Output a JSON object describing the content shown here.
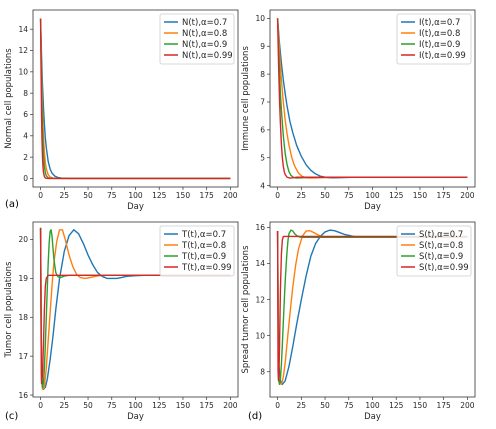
{
  "colors": [
    "#1f77b4",
    "#ff7f0e",
    "#2ca02c",
    "#d62728"
  ],
  "chart_data": [
    {
      "type": "line",
      "panel_label": "(a)",
      "xlabel": "Day",
      "ylabel": "Normal cell  populations",
      "xlim": [
        -8,
        208
      ],
      "ylim": [
        -0.8,
        15.8
      ],
      "xticks": [
        0,
        25,
        50,
        75,
        100,
        125,
        150,
        175,
        200
      ],
      "yticks": [
        0,
        2,
        4,
        6,
        8,
        10,
        12,
        14
      ],
      "legend_position": "top-right",
      "series": [
        {
          "name": "N(t),α=0.7",
          "x": [
            0,
            1,
            2,
            3,
            4,
            5,
            6,
            8,
            10,
            12,
            15,
            18,
            22,
            30,
            40,
            60,
            100,
            200
          ],
          "y": [
            15,
            11.5,
            8.8,
            6.7,
            5.1,
            3.8,
            2.9,
            1.6,
            0.9,
            0.5,
            0.22,
            0.1,
            0.04,
            0,
            0,
            0,
            0,
            0
          ]
        },
        {
          "name": "N(t),α=0.8",
          "x": [
            0,
            1,
            2,
            3,
            4,
            5,
            6,
            8,
            10,
            13,
            16,
            20,
            30,
            60,
            200
          ],
          "y": [
            15,
            10,
            6.4,
            4,
            2.5,
            1.5,
            0.9,
            0.35,
            0.13,
            0.04,
            0.01,
            0,
            0,
            0,
            0
          ]
        },
        {
          "name": "N(t),α=0.9",
          "x": [
            0,
            1,
            2,
            3,
            4,
            5,
            6,
            8,
            10,
            15,
            30,
            200
          ],
          "y": [
            15,
            8.5,
            4.5,
            2.3,
            1.1,
            0.55,
            0.25,
            0.06,
            0.01,
            0,
            0,
            0
          ]
        },
        {
          "name": "N(t),α=0.99",
          "x": [
            0,
            0.5,
            1,
            1.5,
            2,
            2.5,
            3,
            4,
            5,
            6,
            8,
            20,
            200
          ],
          "y": [
            15,
            10,
            6,
            3.5,
            2,
            1.1,
            0.6,
            0.18,
            0.05,
            0.01,
            0,
            0,
            0
          ]
        }
      ]
    },
    {
      "type": "line",
      "panel_label": "",
      "xlabel": "Day",
      "ylabel": "Immune cell  populations",
      "xlim": [
        -8,
        208
      ],
      "ylim": [
        3.95,
        10.3
      ],
      "xticks": [
        0,
        25,
        50,
        75,
        100,
        125,
        150,
        175,
        200
      ],
      "yticks": [
        4,
        5,
        6,
        7,
        8,
        9,
        10
      ],
      "legend_position": "top-right",
      "series": [
        {
          "name": "I(t),α=0.7",
          "x": [
            0,
            2,
            4,
            6,
            8,
            10,
            13,
            16,
            20,
            25,
            30,
            35,
            40,
            45,
            50,
            55,
            60,
            80,
            100,
            200
          ],
          "y": [
            10,
            9.1,
            8.4,
            7.8,
            7.3,
            6.85,
            6.3,
            5.9,
            5.45,
            5.05,
            4.75,
            4.55,
            4.42,
            4.34,
            4.3,
            4.28,
            4.28,
            4.3,
            4.3,
            4.3
          ]
        },
        {
          "name": "I(t),α=0.8",
          "x": [
            0,
            2,
            4,
            6,
            8,
            10,
            12,
            15,
            18,
            22,
            26,
            30,
            35,
            45,
            60,
            100,
            200
          ],
          "y": [
            10,
            8.8,
            7.8,
            7,
            6.35,
            5.85,
            5.45,
            5,
            4.7,
            4.45,
            4.33,
            4.28,
            4.27,
            4.28,
            4.3,
            4.3,
            4.3
          ]
        },
        {
          "name": "I(t),α=0.9",
          "x": [
            0,
            1,
            2,
            3,
            4,
            6,
            8,
            10,
            12,
            14,
            17,
            20,
            25,
            35,
            60,
            200
          ],
          "y": [
            10,
            9,
            8.1,
            7.3,
            6.7,
            5.8,
            5.15,
            4.75,
            4.5,
            4.37,
            4.29,
            4.27,
            4.28,
            4.3,
            4.3,
            4.3
          ]
        },
        {
          "name": "I(t),α=0.99",
          "x": [
            0,
            1,
            2,
            3,
            4,
            5,
            6,
            7,
            8,
            10,
            13,
            16,
            20,
            200
          ],
          "y": [
            10,
            8.4,
            7.1,
            6.2,
            5.5,
            5,
            4.7,
            4.5,
            4.4,
            4.3,
            4.27,
            4.28,
            4.3,
            4.3
          ]
        }
      ]
    },
    {
      "type": "line",
      "panel_label": "(c)",
      "xlabel": "Day",
      "ylabel": "Tumor cell  populations",
      "xlim": [
        -8,
        208
      ],
      "ylim": [
        15.95,
        20.45
      ],
      "xticks": [
        0,
        25,
        50,
        75,
        100,
        125,
        150,
        175,
        200
      ],
      "yticks": [
        16,
        17,
        18,
        19,
        20
      ],
      "legend_position": "top-right",
      "series": [
        {
          "name": "T(t),α=0.7",
          "x": [
            0,
            1,
            3,
            5,
            7,
            10,
            13,
            16,
            20,
            25,
            30,
            35,
            40,
            45,
            50,
            55,
            60,
            65,
            70,
            75,
            80,
            85,
            90,
            100,
            110,
            120,
            200
          ],
          "y": [
            20.3,
            16.5,
            16.15,
            16.2,
            16.4,
            16.9,
            17.5,
            18.2,
            19,
            19.7,
            20.1,
            20.25,
            20.15,
            19.9,
            19.6,
            19.35,
            19.15,
            19.05,
            19,
            19,
            19,
            19.02,
            19.05,
            19.07,
            19.08,
            19.08,
            19.08
          ]
        },
        {
          "name": "T(t),α=0.8",
          "x": [
            0,
            1,
            2,
            4,
            6,
            8,
            10,
            12,
            14,
            17,
            20,
            23,
            26,
            30,
            34,
            38,
            42,
            47,
            52,
            57,
            62,
            70,
            80,
            100,
            200
          ],
          "y": [
            20.3,
            16.4,
            16.15,
            16.2,
            16.7,
            17.4,
            18.1,
            18.8,
            19.4,
            19.95,
            20.25,
            20.25,
            20,
            19.6,
            19.3,
            19.1,
            19.02,
            19,
            19.02,
            19.05,
            19.07,
            19.08,
            19.08,
            19.08,
            19.08
          ]
        },
        {
          "name": "T(t),α=0.9",
          "x": [
            0,
            1,
            2,
            3,
            4,
            5,
            6,
            7,
            8,
            9,
            10,
            11,
            12,
            13,
            14,
            16,
            18,
            20,
            22,
            25,
            30,
            40,
            200
          ],
          "y": [
            20.3,
            16.4,
            16.2,
            16.3,
            16.7,
            17.3,
            18,
            18.7,
            19.4,
            19.9,
            20.2,
            20.25,
            20.1,
            19.8,
            19.5,
            19.15,
            19.05,
            19.02,
            19.03,
            19.06,
            19.08,
            19.08,
            19.08
          ]
        },
        {
          "name": "T(t),α=0.99",
          "x": [
            0,
            0.5,
            1,
            2,
            3,
            4,
            5,
            6,
            8,
            10,
            200
          ],
          "y": [
            20.3,
            17.5,
            16.3,
            16.5,
            17.3,
            18.2,
            18.8,
            19,
            19.08,
            19.08,
            19.08
          ]
        }
      ]
    },
    {
      "type": "line",
      "panel_label": "(d)",
      "xlabel": "Day",
      "ylabel": "Spread tumor cell  populations",
      "xlim": [
        -8,
        208
      ],
      "ylim": [
        6.6,
        16.3
      ],
      "xticks": [
        0,
        25,
        50,
        75,
        100,
        125,
        150,
        175,
        200
      ],
      "yticks": [
        8,
        10,
        12,
        14,
        16
      ],
      "legend_position": "top-right",
      "series": [
        {
          "name": "S(t),α=0.7",
          "x": [
            0,
            1,
            3,
            5,
            8,
            12,
            16,
            20,
            25,
            30,
            35,
            40,
            45,
            50,
            55,
            60,
            65,
            70,
            80,
            90,
            100,
            120,
            200
          ],
          "y": [
            15.8,
            8.5,
            7.5,
            7.3,
            7.5,
            8.3,
            9.4,
            10.6,
            12,
            13.3,
            14.4,
            15.1,
            15.5,
            15.75,
            15.85,
            15.82,
            15.72,
            15.62,
            15.5,
            15.45,
            15.45,
            15.45,
            15.45
          ]
        },
        {
          "name": "S(t),α=0.8",
          "x": [
            0,
            1,
            2,
            4,
            6,
            8,
            10,
            13,
            16,
            19,
            22,
            26,
            30,
            34,
            38,
            42,
            46,
            50,
            60,
            70,
            100,
            200
          ],
          "y": [
            15.8,
            8,
            7.4,
            7.3,
            7.7,
            8.5,
            9.6,
            11.2,
            12.7,
            13.9,
            14.8,
            15.5,
            15.8,
            15.82,
            15.72,
            15.6,
            15.5,
            15.45,
            15.45,
            15.45,
            15.45,
            15.45
          ]
        },
        {
          "name": "S(t),α=0.9",
          "x": [
            0,
            1,
            2,
            3,
            4,
            5,
            6,
            7,
            8,
            9,
            10,
            11,
            12,
            14,
            16,
            18,
            20,
            23,
            26,
            30,
            40,
            200
          ],
          "y": [
            15.8,
            7.6,
            7.3,
            7.6,
            8.4,
            9.5,
            10.7,
            11.9,
            13,
            13.9,
            14.7,
            15.3,
            15.65,
            15.85,
            15.8,
            15.65,
            15.55,
            15.47,
            15.45,
            15.45,
            15.45,
            15.45
          ]
        },
        {
          "name": "S(t),α=0.99",
          "x": [
            0,
            0.5,
            1,
            1.5,
            2,
            2.5,
            3,
            4,
            5,
            6,
            8,
            200
          ],
          "y": [
            15.8,
            8,
            7.5,
            8,
            9.3,
            11,
            12.6,
            14.5,
            15.3,
            15.5,
            15.5,
            15.5
          ]
        }
      ]
    }
  ]
}
